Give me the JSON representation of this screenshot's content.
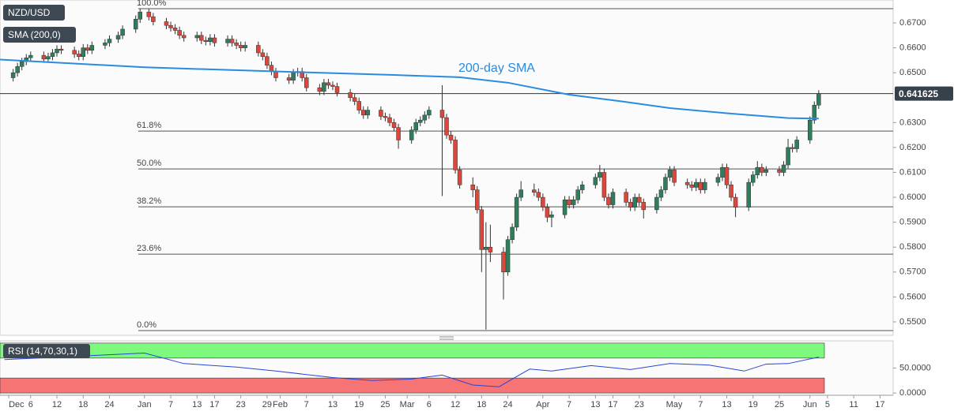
{
  "chart_data": [
    {
      "type": "candlestick",
      "title": "NZD/USD",
      "up_color": "#2f7d5c",
      "down_color": "#d9473d",
      "xlim": [
        -2,
        202
      ],
      "ylim": [
        0.5446,
        0.6792
      ],
      "yticks": [
        {
          "value": 0.55,
          "label": "0.5500"
        },
        {
          "value": 0.56,
          "label": "0.5600"
        },
        {
          "value": 0.57,
          "label": "0.5700"
        },
        {
          "value": 0.58,
          "label": "0.5800"
        },
        {
          "value": 0.59,
          "label": "0.5900"
        },
        {
          "value": 0.6,
          "label": "0.6000"
        },
        {
          "value": 0.61,
          "label": "0.6100"
        },
        {
          "value": 0.62,
          "label": "0.6200"
        },
        {
          "value": 0.63,
          "label": "0.6300"
        },
        {
          "value": 0.65,
          "label": "0.6500"
        },
        {
          "value": 0.66,
          "label": "0.6600"
        },
        {
          "value": 0.67,
          "label": "0.6700"
        }
      ],
      "x": [
        1,
        2,
        3,
        4,
        5,
        8,
        9,
        10,
        11,
        12,
        15,
        16,
        17,
        18,
        19,
        22,
        23,
        25,
        26,
        29,
        30,
        32,
        33,
        36,
        37,
        38,
        39,
        40,
        43,
        44,
        45,
        46,
        47,
        50,
        51,
        52,
        53,
        54,
        57,
        58,
        59,
        60,
        61,
        64,
        65,
        66,
        67,
        68,
        71,
        72,
        73,
        74,
        75,
        78,
        79,
        80,
        81,
        82,
        85,
        86,
        87,
        88,
        89,
        92,
        93,
        94,
        95,
        96,
        99,
        100,
        101,
        102,
        103,
        106,
        107,
        108,
        109,
        110,
        113,
        114,
        115,
        116,
        117,
        120,
        121,
        122,
        123,
        124,
        127,
        128,
        129,
        130,
        131,
        134,
        135,
        136,
        137,
        138,
        141,
        142,
        143,
        144,
        145,
        148,
        149,
        150,
        151,
        152,
        155,
        156,
        157,
        158,
        159,
        162,
        163,
        164,
        165,
        166,
        169,
        170,
        171,
        172,
        173,
        176,
        177,
        178,
        179,
        180,
        183,
        184,
        185
      ],
      "open": [
        0.648,
        0.65,
        0.6525,
        0.6545,
        0.656,
        0.657,
        0.6555,
        0.6565,
        0.658,
        0.6595,
        0.659,
        0.6575,
        0.6565,
        0.66,
        0.659,
        0.661,
        0.662,
        0.6635,
        0.665,
        0.6675,
        0.6715,
        0.6744,
        0.6725,
        0.6705,
        0.669,
        0.668,
        0.667,
        0.665,
        0.664,
        0.665,
        0.663,
        0.6625,
        0.664,
        0.662,
        0.6635,
        0.662,
        0.661,
        0.66,
        0.661,
        0.658,
        0.6565,
        0.653,
        0.6505,
        0.648,
        0.647,
        0.65,
        0.6505,
        0.648,
        0.644,
        0.6425,
        0.646,
        0.645,
        0.6445,
        0.642,
        0.64,
        0.6385,
        0.635,
        0.633,
        0.635,
        0.6325,
        0.632,
        0.63,
        0.628,
        0.623,
        0.627,
        0.63,
        0.631,
        0.633,
        0.635,
        0.632,
        0.625,
        0.623,
        0.611,
        0.605,
        0.603,
        0.595,
        0.579,
        0.58,
        0.578,
        0.57,
        0.583,
        0.588,
        0.6,
        0.603,
        0.602,
        0.6,
        0.596,
        0.592,
        0.593,
        0.599,
        0.597,
        0.599,
        0.603,
        0.605,
        0.608,
        0.61,
        0.6,
        0.597,
        0.602,
        0.598,
        0.596,
        0.6,
        0.598,
        0.595,
        0.6,
        0.603,
        0.608,
        0.611,
        0.606,
        0.605,
        0.604,
        0.606,
        0.603,
        0.606,
        0.608,
        0.612,
        0.605,
        0.6,
        0.596,
        0.606,
        0.609,
        0.612,
        0.61,
        0.611,
        0.61,
        0.613,
        0.62,
        0.6195,
        0.623,
        0.631,
        0.637
      ],
      "high": [
        0.6515,
        0.654,
        0.656,
        0.6575,
        0.6585,
        0.6585,
        0.658,
        0.6595,
        0.661,
        0.661,
        0.6605,
        0.659,
        0.6615,
        0.6615,
        0.6625,
        0.6635,
        0.665,
        0.6665,
        0.669,
        0.673,
        0.6757,
        0.6756,
        0.674,
        0.672,
        0.6705,
        0.6695,
        0.6685,
        0.6665,
        0.6665,
        0.6665,
        0.6645,
        0.6655,
        0.6655,
        0.665,
        0.665,
        0.6635,
        0.6625,
        0.6625,
        0.6625,
        0.6595,
        0.658,
        0.6545,
        0.652,
        0.6495,
        0.6515,
        0.652,
        0.652,
        0.6495,
        0.6455,
        0.6475,
        0.6475,
        0.6465,
        0.646,
        0.6435,
        0.6415,
        0.64,
        0.6365,
        0.6365,
        0.6365,
        0.634,
        0.6335,
        0.6315,
        0.6295,
        0.6285,
        0.6315,
        0.6325,
        0.6345,
        0.6365,
        0.645,
        0.6335,
        0.6265,
        0.6245,
        0.6125,
        0.608,
        0.6045,
        0.5965,
        0.59,
        0.589,
        0.58,
        0.5845,
        0.5895,
        0.6015,
        0.6065,
        0.6055,
        0.6035,
        0.6015,
        0.5975,
        0.5945,
        0.6005,
        0.6005,
        0.6005,
        0.6045,
        0.6065,
        0.6095,
        0.613,
        0.6115,
        0.6015,
        0.6035,
        0.6035,
        0.5995,
        0.6015,
        0.6015,
        0.5995,
        0.6015,
        0.6045,
        0.6095,
        0.6125,
        0.6125,
        0.6075,
        0.6065,
        0.6075,
        0.6075,
        0.6075,
        0.6095,
        0.6135,
        0.6135,
        0.6065,
        0.6015,
        0.6075,
        0.6105,
        0.6145,
        0.6135,
        0.6125,
        0.6125,
        0.6145,
        0.6235,
        0.6215,
        0.6245,
        0.6325,
        0.6385,
        0.643
      ],
      "low": [
        0.6465,
        0.6485,
        0.651,
        0.653,
        0.6545,
        0.654,
        0.654,
        0.655,
        0.6565,
        0.6575,
        0.656,
        0.655,
        0.655,
        0.6575,
        0.6575,
        0.6595,
        0.6605,
        0.662,
        0.6635,
        0.666,
        0.67,
        0.671,
        0.669,
        0.6675,
        0.6665,
        0.6655,
        0.6635,
        0.6625,
        0.6625,
        0.6615,
        0.661,
        0.661,
        0.6605,
        0.6605,
        0.6605,
        0.6595,
        0.6585,
        0.6585,
        0.6565,
        0.655,
        0.6515,
        0.649,
        0.6465,
        0.6455,
        0.6455,
        0.6485,
        0.6465,
        0.6425,
        0.641,
        0.641,
        0.6435,
        0.643,
        0.6405,
        0.6385,
        0.637,
        0.6335,
        0.6315,
        0.6315,
        0.631,
        0.6305,
        0.6285,
        0.6265,
        0.6195,
        0.6215,
        0.6255,
        0.6285,
        0.6295,
        0.6315,
        0.6005,
        0.6235,
        0.6215,
        0.6095,
        0.6035,
        0.6,
        0.5935,
        0.57,
        0.5469,
        0.574,
        0.559,
        0.5685,
        0.5815,
        0.5865,
        0.5985,
        0.6005,
        0.5985,
        0.5945,
        0.59,
        0.588,
        0.5915,
        0.5955,
        0.5955,
        0.5975,
        0.6015,
        0.6035,
        0.6065,
        0.5985,
        0.5955,
        0.5955,
        0.5965,
        0.5945,
        0.5945,
        0.5965,
        0.5915,
        0.5935,
        0.5985,
        0.6015,
        0.6065,
        0.6045,
        0.6035,
        0.6025,
        0.6025,
        0.6015,
        0.6015,
        0.6045,
        0.6065,
        0.6035,
        0.5985,
        0.592,
        0.5945,
        0.6045,
        0.6075,
        0.6085,
        0.6085,
        0.6085,
        0.6085,
        0.6115,
        0.618,
        0.618,
        0.6215,
        0.6295,
        0.6355
      ],
      "close": [
        0.65,
        0.6525,
        0.6545,
        0.656,
        0.657,
        0.6555,
        0.6565,
        0.658,
        0.6595,
        0.659,
        0.6575,
        0.6565,
        0.66,
        0.659,
        0.661,
        0.662,
        0.6635,
        0.665,
        0.6675,
        0.6715,
        0.6744,
        0.6725,
        0.6705,
        0.669,
        0.668,
        0.667,
        0.665,
        0.664,
        0.665,
        0.663,
        0.6625,
        0.664,
        0.662,
        0.6635,
        0.662,
        0.661,
        0.66,
        0.661,
        0.658,
        0.6565,
        0.653,
        0.6505,
        0.648,
        0.647,
        0.65,
        0.6505,
        0.648,
        0.644,
        0.6425,
        0.646,
        0.645,
        0.6445,
        0.642,
        0.64,
        0.6385,
        0.635,
        0.633,
        0.635,
        0.6325,
        0.632,
        0.63,
        0.628,
        0.623,
        0.627,
        0.63,
        0.631,
        0.633,
        0.635,
        0.632,
        0.625,
        0.623,
        0.611,
        0.605,
        0.603,
        0.595,
        0.579,
        0.58,
        0.578,
        0.57,
        0.583,
        0.588,
        0.6,
        0.603,
        0.602,
        0.6,
        0.596,
        0.592,
        0.593,
        0.599,
        0.597,
        0.599,
        0.603,
        0.605,
        0.608,
        0.61,
        0.6,
        0.597,
        0.602,
        0.598,
        0.596,
        0.6,
        0.598,
        0.595,
        0.6,
        0.603,
        0.608,
        0.611,
        0.606,
        0.605,
        0.604,
        0.606,
        0.603,
        0.606,
        0.608,
        0.612,
        0.605,
        0.6,
        0.596,
        0.606,
        0.609,
        0.612,
        0.61,
        0.611,
        0.61,
        0.613,
        0.62,
        0.6195,
        0.623,
        0.631,
        0.637,
        0.6416
      ],
      "sma": {
        "name": "SMA (200,0)",
        "color": "#2a8be0",
        "x": [
          -2,
          31,
          63,
          88,
          103,
          114,
          128,
          140,
          151,
          165,
          178,
          185
        ],
        "values": [
          0.6553,
          0.6522,
          0.6504,
          0.6491,
          0.6482,
          0.646,
          0.6412,
          0.6385,
          0.6358,
          0.6336,
          0.6318,
          0.6316
        ]
      },
      "annotation": "200-day SMA",
      "levels": [
        {
          "label": "100.0%",
          "value": 0.6757
        },
        {
          "label": "61.8%",
          "value": 0.6266
        },
        {
          "label": "50.0%",
          "value": 0.6114
        },
        {
          "label": "38.2%",
          "value": 0.5962
        },
        {
          "label": "23.6%",
          "value": 0.5772
        },
        {
          "label": "0.0%",
          "value": 0.5465
        }
      ],
      "last_price": {
        "value": 0.641625,
        "label": "0.641625"
      }
    },
    {
      "type": "line",
      "title": "RSI (14,70,30,1)",
      "color": "#2546d8",
      "xlim": [
        -2,
        202
      ],
      "ylim": [
        -3,
        103
      ],
      "zones": [
        {
          "range": [
            70,
            100
          ],
          "color": "#7dfa7d"
        },
        {
          "range": [
            0,
            30
          ],
          "color": "#f77474"
        }
      ],
      "yticks": [
        {
          "value": 50,
          "label": "50.0000"
        },
        {
          "value": 0,
          "label": "0.0000"
        }
      ],
      "x": [
        -1,
        31,
        40,
        52,
        61,
        74,
        83,
        92,
        99,
        106,
        112,
        115,
        119,
        124,
        133,
        142,
        151,
        160,
        168,
        173,
        178,
        185
      ],
      "values": [
        67,
        80,
        59,
        52,
        44,
        31,
        25,
        28,
        36,
        16,
        12.5,
        28,
        48,
        44,
        55,
        47,
        59,
        56,
        44,
        58,
        59,
        72
      ],
      "xticks": [
        {
          "value": 0,
          "label": "Dec"
        },
        {
          "value": 5,
          "label": "6"
        },
        {
          "value": 11,
          "label": "12"
        },
        {
          "value": 17,
          "label": "18"
        },
        {
          "value": 23,
          "label": "24"
        },
        {
          "value": 31,
          "label": "Jan"
        },
        {
          "value": 37,
          "label": "7"
        },
        {
          "value": 43,
          "label": "13"
        },
        {
          "value": 47,
          "label": "17"
        },
        {
          "value": 53,
          "label": "23"
        },
        {
          "value": 59,
          "label": "29"
        },
        {
          "value": 62,
          "label": "Feb"
        },
        {
          "value": 68,
          "label": "7"
        },
        {
          "value": 74,
          "label": "13"
        },
        {
          "value": 80,
          "label": "19"
        },
        {
          "value": 86,
          "label": "25"
        },
        {
          "value": 91,
          "label": "Mar"
        },
        {
          "value": 96,
          "label": "6"
        },
        {
          "value": 102,
          "label": "12"
        },
        {
          "value": 108,
          "label": "18"
        },
        {
          "value": 114,
          "label": "24"
        },
        {
          "value": 122,
          "label": "Apr"
        },
        {
          "value": 128,
          "label": "7"
        },
        {
          "value": 134,
          "label": "13"
        },
        {
          "value": 138,
          "label": "17"
        },
        {
          "value": 144,
          "label": "23"
        },
        {
          "value": 152,
          "label": "May"
        },
        {
          "value": 158,
          "label": "7"
        },
        {
          "value": 164,
          "label": "13"
        },
        {
          "value": 170,
          "label": "19"
        },
        {
          "value": 176,
          "label": "25"
        },
        {
          "value": 183,
          "label": "Jun"
        },
        {
          "value": 187,
          "label": "5"
        },
        {
          "value": 193,
          "label": "11"
        },
        {
          "value": 199,
          "label": "17"
        }
      ]
    }
  ]
}
